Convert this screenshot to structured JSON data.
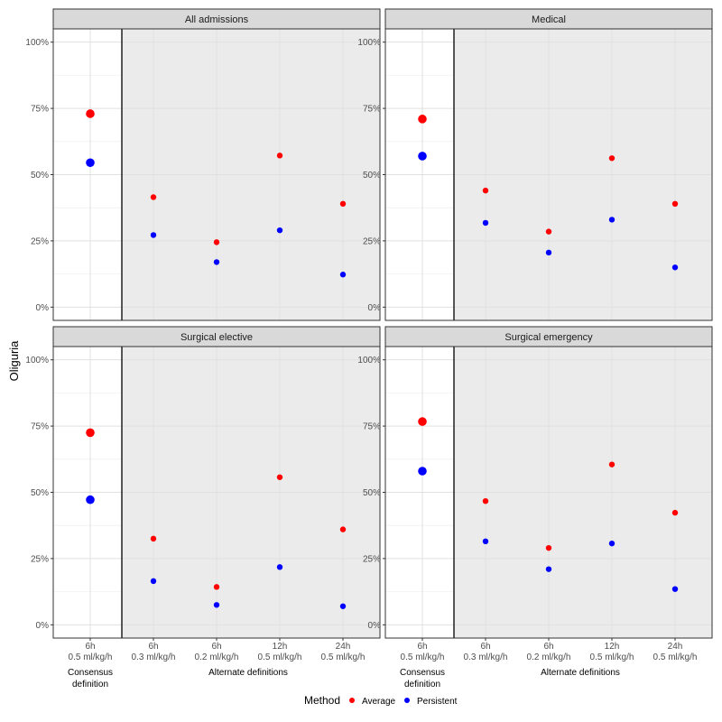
{
  "chart_data": {
    "type": "scatter",
    "ylabel": "Oliguria",
    "ylim": [
      -0.05,
      1.05
    ],
    "y_ticks": [
      0,
      0.25,
      0.5,
      0.75,
      1.0
    ],
    "y_tick_labels": [
      "0%",
      "25%",
      "50%",
      "75%",
      "100%"
    ],
    "categories": [
      {
        "line1": "6h",
        "line2": "0.5 ml/kg/h"
      },
      {
        "line1": "6h",
        "line2": "0.3 ml/kg/h"
      },
      {
        "line1": "6h",
        "line2": "0.2 ml/kg/h"
      },
      {
        "line1": "12h",
        "line2": "0.5 ml/kg/h"
      },
      {
        "line1": "24h",
        "line2": "0.5 ml/kg/h"
      }
    ],
    "group_labels": {
      "consensus_line1": "Consensus",
      "consensus_line2": "definition",
      "alternate": "Alternate definitions"
    },
    "legend": {
      "title": "Method",
      "items": [
        {
          "name": "Average",
          "color": "#ff0000"
        },
        {
          "name": "Persistent",
          "color": "#0000ff"
        }
      ]
    },
    "panels": [
      {
        "title": "All admissions",
        "series": [
          {
            "name": "Average",
            "values": [
              0.73,
              0.415,
              0.245,
              0.572,
              0.39
            ]
          },
          {
            "name": "Persistent",
            "values": [
              0.545,
              0.272,
              0.17,
              0.29,
              0.123
            ]
          }
        ]
      },
      {
        "title": "Medical",
        "series": [
          {
            "name": "Average",
            "values": [
              0.71,
              0.44,
              0.285,
              0.562,
              0.39
            ]
          },
          {
            "name": "Persistent",
            "values": [
              0.57,
              0.318,
              0.206,
              0.33,
              0.15
            ]
          }
        ]
      },
      {
        "title": "Surgical elective",
        "series": [
          {
            "name": "Average",
            "values": [
              0.725,
              0.325,
              0.143,
              0.557,
              0.36
            ]
          },
          {
            "name": "Persistent",
            "values": [
              0.472,
              0.165,
              0.075,
              0.218,
              0.07
            ]
          }
        ]
      },
      {
        "title": "Surgical emergency",
        "series": [
          {
            "name": "Average",
            "values": [
              0.767,
              0.467,
              0.29,
              0.605,
              0.423
            ]
          },
          {
            "name": "Persistent",
            "values": [
              0.58,
              0.315,
              0.21,
              0.307,
              0.135
            ]
          }
        ]
      }
    ]
  }
}
